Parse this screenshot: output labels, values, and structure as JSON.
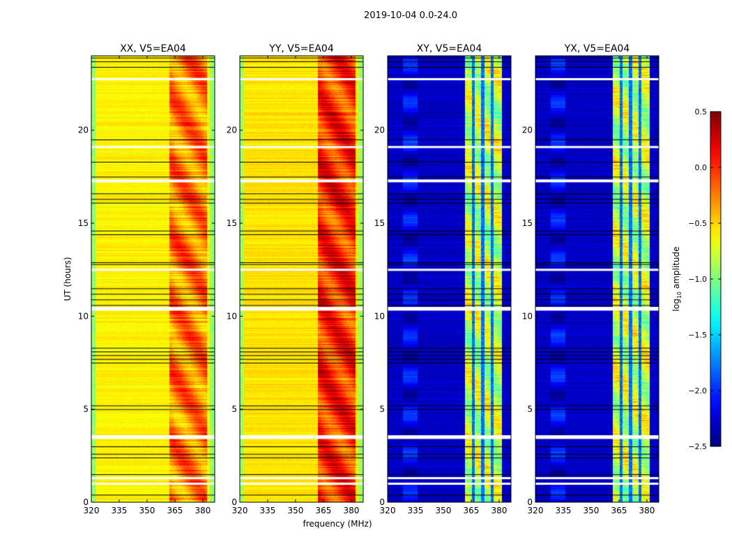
{
  "chart_data": {
    "type": "heatmap",
    "suptitle": "2019-10-04 0.0-24.0",
    "xlabel": "frequency (MHz)",
    "ylabel": "UT (hours)",
    "xlim": [
      320,
      386.4
    ],
    "ylim": [
      0,
      24
    ],
    "xticks": [
      "320",
      "335",
      "350",
      "365",
      "380"
    ],
    "xtick_values": [
      320,
      335,
      350,
      365,
      380
    ],
    "yticks": [
      "0",
      "5",
      "10",
      "15",
      "20"
    ],
    "ytick_values": [
      0,
      5,
      10,
      15,
      20
    ],
    "panels": [
      {
        "title": "XX, V5=EA04",
        "background": -0.6,
        "band": [
          362,
          382
        ],
        "band_level": -0.25,
        "band_gaps": []
      },
      {
        "title": "YY, V5=EA04",
        "background": -0.55,
        "band": [
          362,
          382
        ],
        "band_level": 0.0,
        "band_gaps": []
      },
      {
        "title": "XY, V5=EA04",
        "background": -2.3,
        "band": [
          361.5,
          381.5
        ],
        "band_level": -0.8,
        "band_gaps": [
          366,
          371,
          376
        ]
      },
      {
        "title": "YX, V5=EA04",
        "background": -2.3,
        "band": [
          361.5,
          381.5
        ],
        "band_level": -0.8,
        "band_gaps": [
          366,
          371,
          376
        ]
      }
    ],
    "flagged_white_hours": [
      [
        0.95,
        1.05
      ],
      [
        1.25,
        1.35
      ],
      [
        3.4,
        3.6
      ],
      [
        10.3,
        10.5
      ],
      [
        12.45,
        12.55
      ],
      [
        17.2,
        17.35
      ],
      [
        19.05,
        19.15
      ],
      [
        22.7,
        22.8
      ]
    ],
    "flagged_black_hours": [
      0.4,
      1.5,
      2.4,
      2.6,
      3.0,
      5.0,
      5.2,
      7.5,
      7.7,
      7.9,
      8.1,
      8.3,
      10.6,
      10.9,
      11.2,
      11.5,
      12.8,
      12.9,
      14.4,
      14.6,
      16.1,
      16.3,
      16.6,
      17.5,
      18.3,
      19.5,
      23.4,
      23.7,
      23.9
    ],
    "colorbar": {
      "label": "log10 amplitude",
      "label_main": "log",
      "label_sub": "10",
      "label_rest": " amplitude",
      "range": [
        -2.5,
        0.5
      ],
      "colormap": "jet",
      "ticks": [
        "0.5",
        "0.0",
        "−0.5",
        "−1.0",
        "−1.5",
        "−2.0",
        "−2.5"
      ],
      "tick_values": [
        0.5,
        0.0,
        -0.5,
        -1.0,
        -1.5,
        -2.0,
        -2.5
      ]
    }
  }
}
